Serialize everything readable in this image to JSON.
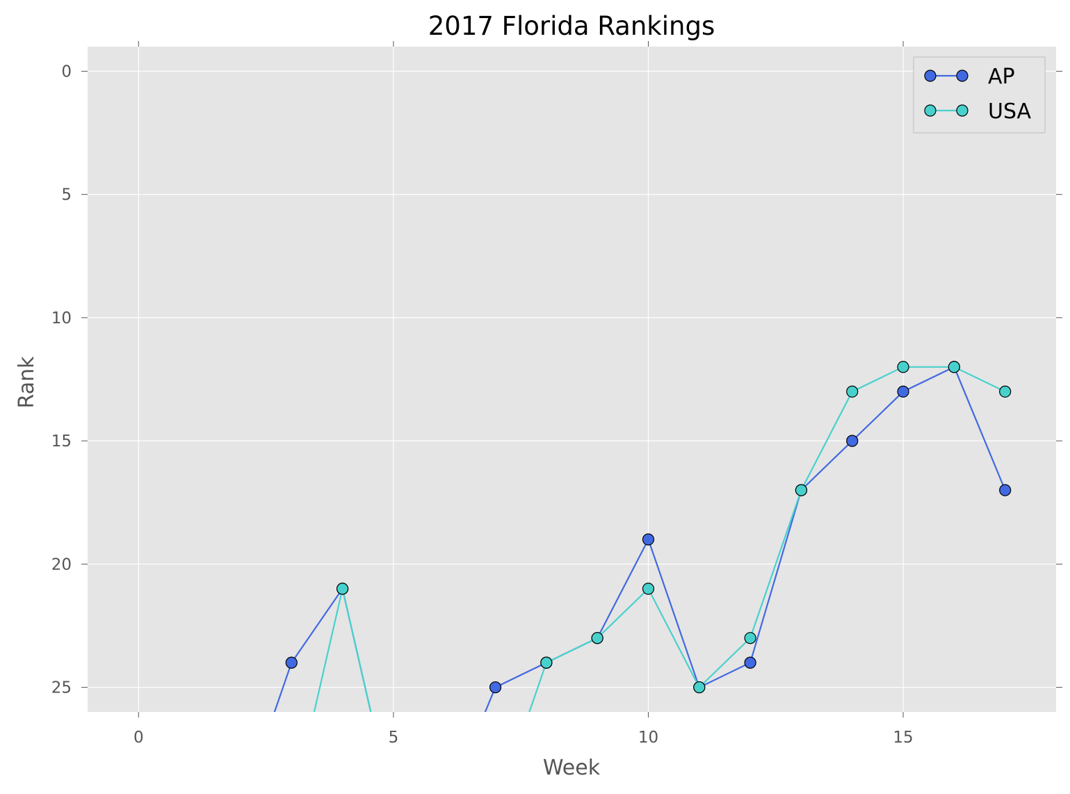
{
  "chart_data": {
    "type": "line",
    "title": "2017 Florida Rankings",
    "xlabel": "Week",
    "ylabel": "Rank",
    "xlim": [
      -1,
      18
    ],
    "ylim": [
      26,
      -1
    ],
    "y_inverted": true,
    "grid": true,
    "legend_position": "top-right",
    "x_ticks": [
      "0",
      "5",
      "10",
      "15"
    ],
    "y_ticks": [
      "0",
      "5",
      "10",
      "15",
      "20",
      "25"
    ],
    "series": [
      {
        "name": "AP",
        "color": "#4169e1",
        "x": [
          0,
          1,
          2,
          3,
          4,
          5,
          6,
          7,
          8,
          9,
          10,
          11,
          12,
          13,
          14,
          15,
          16,
          17
        ],
        "y": [
          null,
          null,
          null,
          24,
          21,
          null,
          null,
          25,
          24,
          23,
          19,
          25,
          24,
          17,
          15,
          13,
          12,
          17
        ]
      },
      {
        "name": "USA",
        "color": "#48d1cc",
        "x": [
          0,
          1,
          2,
          3,
          4,
          5,
          6,
          7,
          8,
          9,
          10,
          11,
          12,
          13,
          14,
          15,
          16,
          17
        ],
        "y": [
          null,
          null,
          null,
          null,
          21,
          null,
          null,
          null,
          24,
          23,
          21,
          25,
          23,
          17,
          13,
          12,
          12,
          13
        ]
      }
    ]
  }
}
